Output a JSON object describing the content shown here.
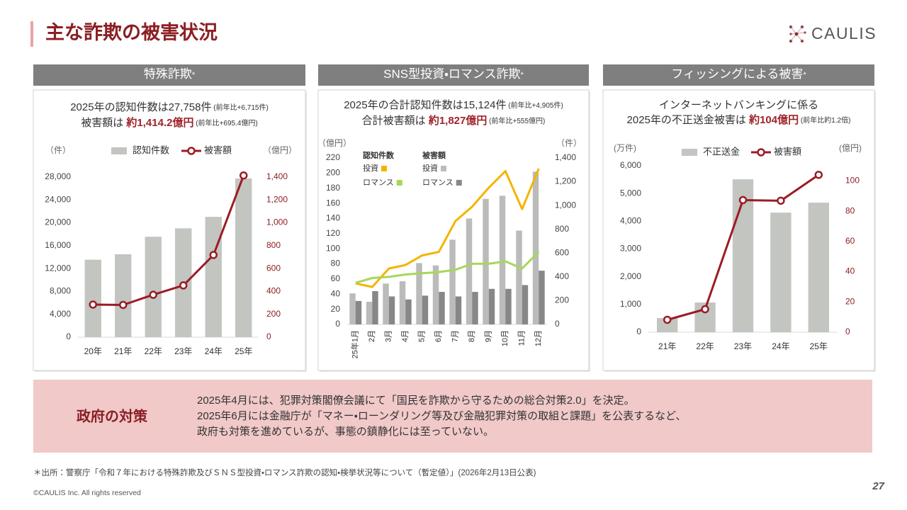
{
  "header": {
    "title": "主な詐欺の被害状況",
    "logo": "CAULIS"
  },
  "chart_data": [
    {
      "type": "combo",
      "title": "特殊詐欺",
      "title_mark": "*",
      "summary": [
        [
          {
            "text": "2025年の認知件数は27,758件",
            "style": "plain"
          },
          {
            "text": " (前年比+6,715件)",
            "style": "note"
          }
        ],
        [
          {
            "text": "被害額は ",
            "style": "plain"
          },
          {
            "text": "約1,414.2億円",
            "style": "em"
          },
          {
            "text": " (前年比+695.4億円)",
            "style": "note"
          }
        ]
      ],
      "ylabel": "（件）",
      "y2label": "（億円）",
      "legend": "top",
      "categories": [
        "20年",
        "21年",
        "22年",
        "23年",
        "24年",
        "25年"
      ],
      "series": [
        {
          "name": "認知件数",
          "type": "bar",
          "axis": "y",
          "color": "#c3c5c1",
          "values": [
            13550,
            14498,
            17570,
            19038,
            21043,
            27758
          ]
        },
        {
          "name": "被害額",
          "type": "line",
          "axis": "y2",
          "color": "#9b1c24",
          "marker": true,
          "values": [
            285.2,
            282.0,
            370.8,
            452.6,
            718.8,
            1414.2
          ]
        }
      ],
      "ylim": [
        0,
        28000
      ],
      "yticks": [
        0,
        {
          "value": 4000,
          "label": "4,000"
        },
        {
          "value": 8000,
          "label": "8,000"
        },
        {
          "value": 12000,
          "label": "12,000"
        },
        {
          "value": 16000,
          "label": "16,000"
        },
        {
          "value": 20000,
          "label": "20,000"
        },
        {
          "value": 24000,
          "label": "24,000"
        },
        {
          "value": 28000,
          "label": "28,000"
        }
      ],
      "y2lim": [
        0,
        1400
      ],
      "y2ticks": [
        0,
        200,
        400,
        600,
        800,
        {
          "value": 1000,
          "label": "1,000"
        },
        {
          "value": 1200,
          "label": "1,200"
        },
        {
          "value": 1400,
          "label": "1,400"
        }
      ]
    },
    {
      "type": "grouped_combo",
      "title": "SNS型投資・ロマンス詐欺",
      "title_mark": "*",
      "summary": [
        [
          {
            "text": "2025年の合計認知件数は15,124件",
            "style": "plain"
          },
          {
            "text": " (前年比+4,905件)",
            "style": "note"
          }
        ],
        [
          {
            "text": "合計被害額は ",
            "style": "plain"
          },
          {
            "text": "約1,827億円",
            "style": "em"
          },
          {
            "text": " (前年比+555億円)",
            "style": "note"
          }
        ]
      ],
      "ylabel": "（億円）",
      "y2label": "（件）",
      "legend": "top left",
      "categories": [
        "25年1月",
        "2月",
        "3月",
        "4月",
        "5月",
        "6月",
        "7月",
        "8月",
        "9月",
        "10月",
        "11月",
        "12月"
      ],
      "groups": [
        {
          "name": "認知件数",
          "type": "line",
          "axis": "y2",
          "series": [
            {
              "name": "投資",
              "color": "#f5b400",
              "values": [
                345,
                315,
                470,
                500,
                580,
                610,
                870,
                990,
                1150,
                1290,
                970,
                1310
              ]
            },
            {
              "name": "ロマンス",
              "color": "#a9d65a",
              "values": [
                350,
                390,
                400,
                420,
                430,
                440,
                460,
                510,
                510,
                530,
                470,
                610
              ]
            }
          ]
        },
        {
          "name": "被害額",
          "type": "bar",
          "axis": "y",
          "series": [
            {
              "name": "投資",
              "color": "#bbbcba",
              "values": [
                41,
                30,
                54,
                57,
                81,
                78,
                112,
                140,
                166,
                170,
                124,
                202
              ]
            },
            {
              "name": "ロマンス",
              "color": "#878787",
              "values": [
                31,
                44,
                37,
                33,
                38,
                43,
                37,
                43,
                47,
                47,
                52,
                71
              ]
            }
          ]
        }
      ],
      "ylim": [
        0,
        220
      ],
      "yticks": [
        0,
        20,
        40,
        60,
        80,
        100,
        120,
        140,
        160,
        180,
        200,
        220
      ],
      "y2lim": [
        0,
        1400
      ],
      "y2ticks": [
        0,
        200,
        400,
        600,
        800,
        {
          "value": 1000,
          "label": "1,000"
        },
        {
          "value": 1200,
          "label": "1,200"
        },
        {
          "value": 1400,
          "label": "1,400"
        }
      ]
    },
    {
      "type": "combo",
      "title": "フィッシングによる被害",
      "title_mark": "*",
      "summary": [
        [
          {
            "text": "インターネットバンキングに係る",
            "style": "plain"
          }
        ],
        [
          {
            "text": "2025年の不正送金被害は ",
            "style": "plain"
          },
          {
            "text": "約104億円",
            "style": "em"
          },
          {
            "text": " (前年比約1.2倍)",
            "style": "note"
          }
        ]
      ],
      "ylabel": "(万件)",
      "y2label": "(億円)",
      "legend": "top",
      "categories": [
        "21年",
        "22年",
        "23年",
        "24年",
        "25年"
      ],
      "series": [
        {
          "name": "不正送金",
          "type": "bar",
          "axis": "y",
          "color": "#c3c5c1",
          "values": [
            510,
            1070,
            5510,
            4310,
            4670
          ]
        },
        {
          "name": "被害額",
          "type": "line",
          "axis": "y2",
          "color": "#9b1c24",
          "marker": true,
          "values": [
            8.2,
            15.2,
            87.3,
            86.9,
            104
          ]
        }
      ],
      "ylim": [
        0,
        6000
      ],
      "yticks": [
        0,
        {
          "value": 1000,
          "label": "1,000"
        },
        {
          "value": 2000,
          "label": "2,000"
        },
        {
          "value": 3000,
          "label": "3,000"
        },
        {
          "value": 4000,
          "label": "4,000"
        },
        {
          "value": 5000,
          "label": "5,000"
        },
        {
          "value": 6000,
          "label": "6,000"
        }
      ],
      "y2lim": [
        0,
        110
      ],
      "y2ticks": [
        0,
        20,
        40,
        60,
        80,
        100
      ]
    }
  ],
  "policy": {
    "label": "政府の対策",
    "lines": [
      "2025年4月には、犯罪対策閣僚会議にて「国民を詐欺から守るための総合対策2.0」を決定。",
      "2025年6月には金融庁が「マネー・ローンダリング等及び金融犯罪対策の取組と課題」を公表するなど、",
      "政府も対策を進めているが、事態の鎮静化には至っていない。"
    ]
  },
  "footer": {
    "source": "＊出所：警察庁「令和７年における特殊詐欺及びＳＮＳ型投資・ロマンス詐欺の認知・検挙状況等について（暫定値）」(2026年2月13日公表)",
    "copyright": "©CAULIS Inc. All rights reserved",
    "page": "27"
  }
}
